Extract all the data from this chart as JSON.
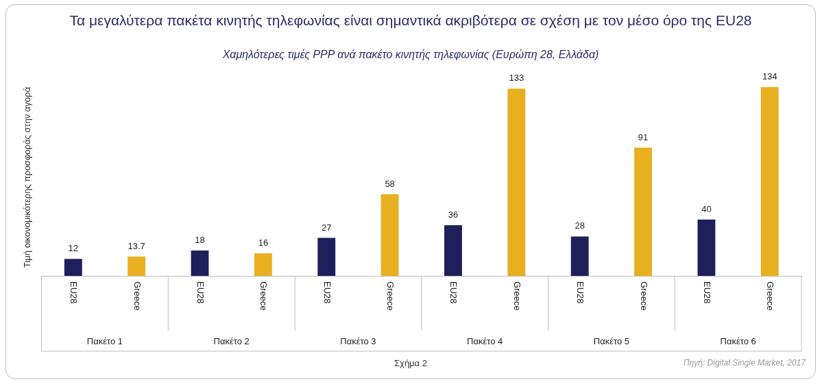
{
  "chart_data": {
    "type": "bar",
    "title": "Τα μεγαλύτερα πακέτα κινητής τηλεφωνίας είναι σημαντικά ακριβότερα σε σχέση με τον μέσο όρο της EU28",
    "subtitle": "Χαμηλότερες τιμές PPP ανά πακέτο κινητής τηλεφωνίας  (Ευρώπη 28, Ελλάδα)",
    "ylabel": "Τιμή οικονομικότερης προσφοράς στην αγορά",
    "categories": [
      "Πακέτο 1",
      "Πακέτο 2",
      "Πακέτο 3",
      "Πακέτο 4",
      "Πακέτο 5",
      "Πακέτο 6"
    ],
    "series": [
      {
        "name": "EU28",
        "color": "#1f1f5c",
        "values": [
          12,
          18,
          27,
          36,
          28,
          40
        ]
      },
      {
        "name": "Greece",
        "color": "#e8b021",
        "values": [
          13.7,
          16,
          58,
          133,
          91,
          134
        ]
      }
    ],
    "data_labels": true,
    "legend": false,
    "grid": false,
    "annotations": [
      "Σχήμα 2",
      "Πηγή: Digital Single Market, 2017"
    ]
  }
}
